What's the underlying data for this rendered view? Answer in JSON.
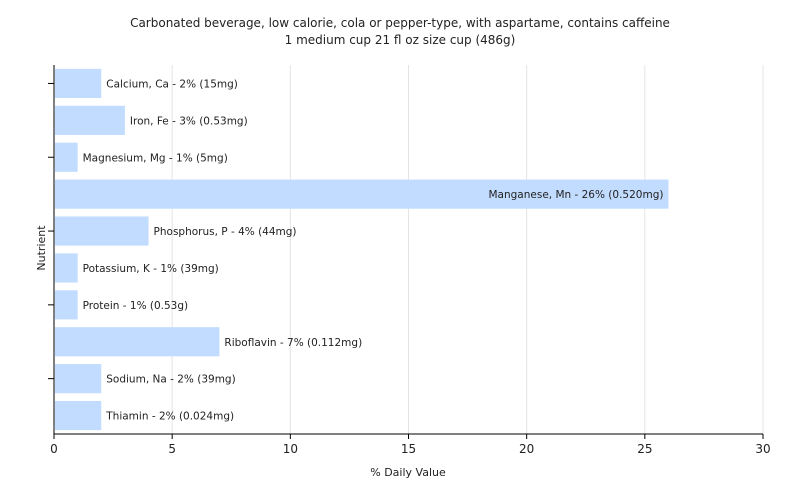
{
  "chart_data": {
    "type": "bar",
    "orientation": "horizontal",
    "title": "Carbonated beverage, low calorie, cola or pepper-type, with aspartame, contains caffeine",
    "subtitle": "1 medium cup 21 fl oz size cup (486g)",
    "xlabel": "% Daily Value",
    "ylabel": "Nutrient",
    "xlim": [
      0,
      30
    ],
    "xticks": [
      0,
      5,
      10,
      15,
      20,
      25,
      30
    ],
    "grid": true,
    "bar_color": "#c2dcff",
    "categories": [
      "Calcium, Ca",
      "Iron, Fe",
      "Magnesium, Mg",
      "Manganese, Mn",
      "Phosphorus, P",
      "Potassium, K",
      "Protein",
      "Riboflavin",
      "Sodium, Na",
      "Thiamin"
    ],
    "values": [
      2,
      3,
      1,
      26,
      4,
      1,
      1,
      7,
      2,
      2
    ],
    "bar_labels": [
      "Calcium, Ca - 2% (15mg)",
      "Iron, Fe - 3% (0.53mg)",
      "Magnesium, Mg - 1% (5mg)",
      "Manganese, Mn - 26% (0.520mg)",
      "Phosphorus, P - 4% (44mg)",
      "Potassium, K - 1% (39mg)",
      "Protein - 1% (0.53g)",
      "Riboflavin - 7% (0.112mg)",
      "Sodium, Na - 2% (39mg)",
      "Thiamin - 2% (0.024mg)"
    ]
  }
}
